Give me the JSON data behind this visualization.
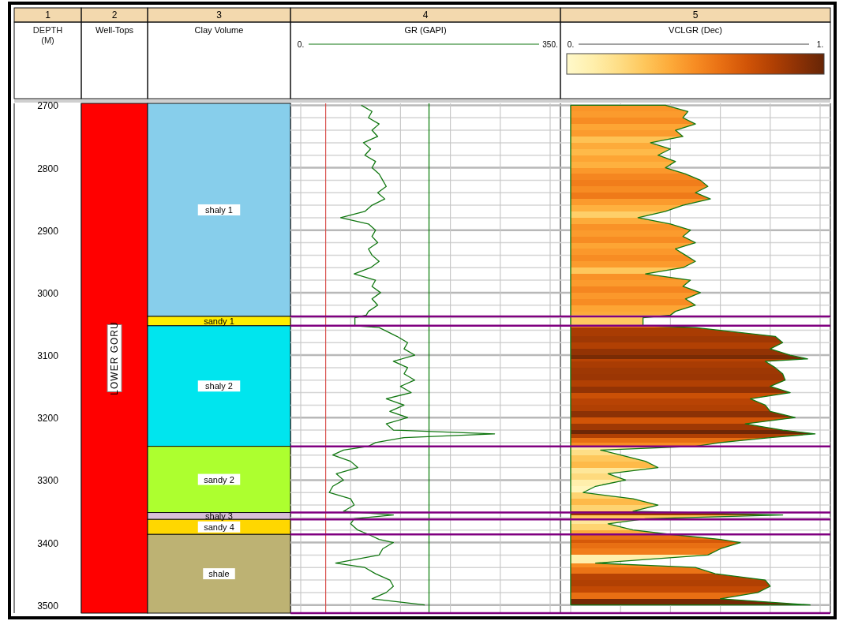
{
  "chart_data": [
    {
      "type": "bar",
      "categories": [
        "Well-Tops",
        "Clay Volume"
      ],
      "ylabel": "DEPTH (M)",
      "annotations": [
        "1",
        "2",
        "3"
      ],
      "ylim": [
        3513,
        2697
      ],
      "yticks": [
        2700,
        2800,
        2900,
        3000,
        3100,
        3200,
        3300,
        3400,
        3500
      ],
      "series": [
        {
          "name": "LOWER GORU",
          "color": "#ff0000",
          "values": [
            816,
            null
          ],
          "base": [
            2697,
            null
          ]
        },
        {
          "name": "shaly 1",
          "color": "#87ceeb",
          "values": [
            null,
            341
          ],
          "base": [
            null,
            2697
          ]
        },
        {
          "name": "sandy 1",
          "color": "#ffee00",
          "values": [
            null,
            15
          ],
          "base": [
            null,
            3038
          ]
        },
        {
          "name": "shaly 2",
          "color": "#00e5ee",
          "values": [
            null,
            193
          ],
          "base": [
            null,
            3053
          ]
        },
        {
          "name": "sandy 2",
          "color": "#adff2f",
          "values": [
            null,
            106
          ],
          "base": [
            null,
            3246
          ]
        },
        {
          "name": "shaly 3",
          "color": "#d8bfd8",
          "values": [
            null,
            11
          ],
          "base": [
            null,
            3352
          ]
        },
        {
          "name": "sandy 4",
          "color": "#ffd700",
          "values": [
            null,
            24
          ],
          "base": [
            null,
            3363
          ]
        },
        {
          "name": "shale",
          "color": "#bdb273",
          "values": [
            null,
            126
          ],
          "base": [
            null,
            3387
          ]
        }
      ]
    },
    {
      "type": "line",
      "title": "4",
      "xlabel": "GR (GAPI)",
      "grid": true,
      "tick_labels": "x",
      "xlim": [
        0,
        350
      ],
      "xticks": [
        {
          "value": 0,
          "label": "0."
        },
        {
          "value": 70,
          "label": null
        },
        {
          "value": 140,
          "label": null
        },
        {
          "value": 210,
          "label": null
        },
        {
          "value": 280,
          "label": null
        },
        {
          "value": 350,
          "label": "350."
        }
      ],
      "ylim": [
        3513,
        2697
      ],
      "yticks": [
        {
          "value": 2700,
          "label": null
        },
        {
          "value": 2720,
          "label": null
        },
        {
          "value": 2740,
          "label": null
        },
        {
          "value": 2760,
          "label": null
        },
        {
          "value": 2780,
          "label": null
        },
        {
          "value": 2800,
          "label": null
        },
        {
          "value": 2820,
          "label": null
        },
        {
          "value": 2840,
          "label": null
        },
        {
          "value": 2860,
          "label": null
        },
        {
          "value": 2880,
          "label": null
        },
        {
          "value": 2900,
          "label": null
        },
        {
          "value": 2920,
          "label": null
        },
        {
          "value": 2940,
          "label": null
        },
        {
          "value": 2960,
          "label": null
        },
        {
          "value": 2980,
          "label": null
        },
        {
          "value": 3000,
          "label": null
        },
        {
          "value": 3020,
          "label": null
        },
        {
          "value": 3040,
          "label": null
        },
        {
          "value": 3060,
          "label": null
        },
        {
          "value": 3080,
          "label": null
        },
        {
          "value": 3100,
          "label": null
        },
        {
          "value": 3120,
          "label": null
        },
        {
          "value": 3140,
          "label": null
        },
        {
          "value": 3160,
          "label": null
        },
        {
          "value": 3180,
          "label": null
        },
        {
          "value": 3200,
          "label": null
        },
        {
          "value": 3220,
          "label": null
        },
        {
          "value": 3240,
          "label": null
        },
        {
          "value": 3260,
          "label": null
        },
        {
          "value": 3280,
          "label": null
        },
        {
          "value": 3300,
          "label": null
        },
        {
          "value": 3320,
          "label": null
        },
        {
          "value": 3340,
          "label": null
        },
        {
          "value": 3360,
          "label": null
        },
        {
          "value": 3380,
          "label": null
        },
        {
          "value": 3400,
          "label": null
        },
        {
          "value": 3420,
          "label": null
        },
        {
          "value": 3440,
          "label": null
        },
        {
          "value": 3460,
          "label": null
        },
        {
          "value": 3480,
          "label": null
        },
        {
          "value": 3500,
          "label": null
        }
      ],
      "ref_lines": [
        {
          "axis": "x",
          "value": 35,
          "color": "#d9534f"
        },
        {
          "axis": "x",
          "value": 180,
          "color": "#007a00"
        },
        {
          "axis": "y",
          "value": 3038,
          "color": "#800080"
        },
        {
          "axis": "y",
          "value": 3053,
          "color": "#800080"
        },
        {
          "axis": "y",
          "value": 3246,
          "color": "#800080"
        },
        {
          "axis": "y",
          "value": 3352,
          "color": "#800080"
        },
        {
          "axis": "y",
          "value": 3363,
          "color": "#800080"
        },
        {
          "axis": "y",
          "value": 3387,
          "color": "#800080"
        },
        {
          "axis": "y",
          "value": 3513,
          "color": "#800080"
        }
      ],
      "series": [
        {
          "color": "#117711",
          "x": [
            85,
            100,
            95,
            110,
            100,
            108,
            88,
            98,
            90,
            105,
            100,
            110,
            115,
            120,
            108,
            118,
            100,
            90,
            56,
            95,
            105,
            100,
            108,
            95,
            100,
            110,
            98,
            75,
            105,
            100,
            112,
            100,
            108,
            95,
            92,
            76,
            76,
            110,
            135,
            150,
            145,
            160,
            130,
            150,
            145,
            160,
            140,
            155,
            120,
            145,
            125,
            150,
            120,
            130,
            272,
            145,
            105,
            95,
            60,
            45,
            70,
            80,
            50,
            60,
            45,
            40,
            70,
            75,
            60,
            130,
            75,
            70,
            80,
            95,
            110,
            130,
            115,
            110,
            49,
            90,
            105,
            125,
            130,
            120,
            100,
            174
          ],
          "values": [
            2700,
            2710,
            2720,
            2730,
            2740,
            2750,
            2760,
            2770,
            2780,
            2790,
            2800,
            2810,
            2820,
            2830,
            2840,
            2850,
            2860,
            2870,
            2880,
            2890,
            2900,
            2910,
            2920,
            2930,
            2940,
            2950,
            2960,
            2970,
            2980,
            2990,
            3000,
            3010,
            3020,
            3030,
            3036,
            3040,
            3053,
            3056,
            3070,
            3080,
            3090,
            3100,
            3110,
            3120,
            3130,
            3140,
            3150,
            3160,
            3170,
            3180,
            3190,
            3200,
            3210,
            3220,
            3226,
            3232,
            3240,
            3246,
            3252,
            3260,
            3270,
            3280,
            3290,
            3300,
            3310,
            3320,
            3330,
            3340,
            3350,
            3356,
            3362,
            3370,
            3380,
            3387,
            3395,
            3400,
            3410,
            3420,
            3433,
            3440,
            3450,
            3460,
            3470,
            3480,
            3490,
            3500
          ]
        }
      ]
    },
    {
      "type": "area",
      "orientation": "horizontal",
      "title": "5",
      "xlabel": "VCLGR (Dec)",
      "grid": true,
      "tick_labels": "x",
      "xlim": [
        0,
        1
      ],
      "xticks": [
        {
          "value": 0,
          "label": "0."
        },
        {
          "value": 0.2,
          "label": null
        },
        {
          "value": 0.4,
          "label": null
        },
        {
          "value": 0.6,
          "label": null
        },
        {
          "value": 0.8,
          "label": null
        },
        {
          "value": 1,
          "label": "1."
        }
      ],
      "ylim": [
        3513,
        2697
      ],
      "yticks": [
        {
          "value": 2700,
          "label": null
        },
        {
          "value": 2720,
          "label": null
        },
        {
          "value": 2740,
          "label": null
        },
        {
          "value": 2760,
          "label": null
        },
        {
          "value": 2780,
          "label": null
        },
        {
          "value": 2800,
          "label": null
        },
        {
          "value": 2820,
          "label": null
        },
        {
          "value": 2840,
          "label": null
        },
        {
          "value": 2860,
          "label": null
        },
        {
          "value": 2880,
          "label": null
        },
        {
          "value": 2900,
          "label": null
        },
        {
          "value": 2920,
          "label": null
        },
        {
          "value": 2940,
          "label": null
        },
        {
          "value": 2960,
          "label": null
        },
        {
          "value": 2980,
          "label": null
        },
        {
          "value": 3000,
          "label": null
        },
        {
          "value": 3020,
          "label": null
        },
        {
          "value": 3040,
          "label": null
        },
        {
          "value": 3060,
          "label": null
        },
        {
          "value": 3080,
          "label": null
        },
        {
          "value": 3100,
          "label": null
        },
        {
          "value": 3120,
          "label": null
        },
        {
          "value": 3140,
          "label": null
        },
        {
          "value": 3160,
          "label": null
        },
        {
          "value": 3180,
          "label": null
        },
        {
          "value": 3200,
          "label": null
        },
        {
          "value": 3220,
          "label": null
        },
        {
          "value": 3240,
          "label": null
        },
        {
          "value": 3260,
          "label": null
        },
        {
          "value": 3280,
          "label": null
        },
        {
          "value": 3300,
          "label": null
        },
        {
          "value": 3320,
          "label": null
        },
        {
          "value": 3340,
          "label": null
        },
        {
          "value": 3360,
          "label": null
        },
        {
          "value": 3380,
          "label": null
        },
        {
          "value": 3400,
          "label": null
        },
        {
          "value": 3420,
          "label": null
        },
        {
          "value": 3440,
          "label": null
        },
        {
          "value": 3460,
          "label": null
        },
        {
          "value": 3480,
          "label": null
        },
        {
          "value": 3500,
          "label": null
        }
      ],
      "ref_lines": [
        {
          "axis": "y",
          "value": 3038,
          "color": "#800080"
        },
        {
          "axis": "y",
          "value": 3053,
          "color": "#800080"
        },
        {
          "axis": "y",
          "value": 3246,
          "color": "#800080"
        },
        {
          "axis": "y",
          "value": 3352,
          "color": "#800080"
        },
        {
          "axis": "y",
          "value": 3363,
          "color": "#800080"
        },
        {
          "axis": "y",
          "value": 3387,
          "color": "#800080"
        },
        {
          "axis": "y",
          "value": 3513,
          "color": "#800080"
        }
      ],
      "series": [
        {
          "color": "#117711",
          "values": [
            0.38,
            0.47,
            0.45,
            0.5,
            0.42,
            0.45,
            0.32,
            0.4,
            0.35,
            0.42,
            0.38,
            0.46,
            0.52,
            0.55,
            0.5,
            0.56,
            0.45,
            0.38,
            0.27,
            0.4,
            0.48,
            0.45,
            0.5,
            0.42,
            0.46,
            0.5,
            0.45,
            0.3,
            0.48,
            0.45,
            0.52,
            0.46,
            0.5,
            0.42,
            0.4,
            0.29,
            0.29,
            0.5,
            0.82,
            0.85,
            0.8,
            0.88,
            0.95,
            0.78,
            0.82,
            0.85,
            0.86,
            0.8,
            0.88,
            0.72,
            0.78,
            0.8,
            0.9,
            0.7,
            0.85,
            0.98,
            0.8,
            0.6,
            0.5,
            0.12,
            0.2,
            0.3,
            0.35,
            0.15,
            0.22,
            0.1,
            0.05,
            0.25,
            0.35,
            0.25,
            0.85,
            0.3,
            0.15,
            0.25,
            0.4,
            0.6,
            0.68,
            0.6,
            0.55,
            0.1,
            0.5,
            0.58,
            0.78,
            0.8,
            0.75,
            0.6,
            0.96
          ],
          "x": [
            2700,
            2710,
            2720,
            2730,
            2740,
            2750,
            2760,
            2770,
            2780,
            2790,
            2800,
            2810,
            2820,
            2830,
            2840,
            2850,
            2860,
            2870,
            2880,
            2890,
            2900,
            2910,
            2920,
            2930,
            2940,
            2950,
            2960,
            2970,
            2980,
            2990,
            3000,
            3010,
            3020,
            3030,
            3036,
            3040,
            3053,
            3056,
            3070,
            3080,
            3090,
            3100,
            3106,
            3110,
            3120,
            3130,
            3140,
            3150,
            3160,
            3170,
            3180,
            3190,
            3200,
            3210,
            3220,
            3226,
            3232,
            3240,
            3246,
            3252,
            3260,
            3270,
            3280,
            3290,
            3300,
            3310,
            3320,
            3330,
            3340,
            3350,
            3356,
            3362,
            3370,
            3380,
            3387,
            3395,
            3400,
            3410,
            3420,
            3433,
            3440,
            3450,
            3460,
            3470,
            3480,
            3490,
            3500
          ]
        }
      ]
    }
  ]
}
